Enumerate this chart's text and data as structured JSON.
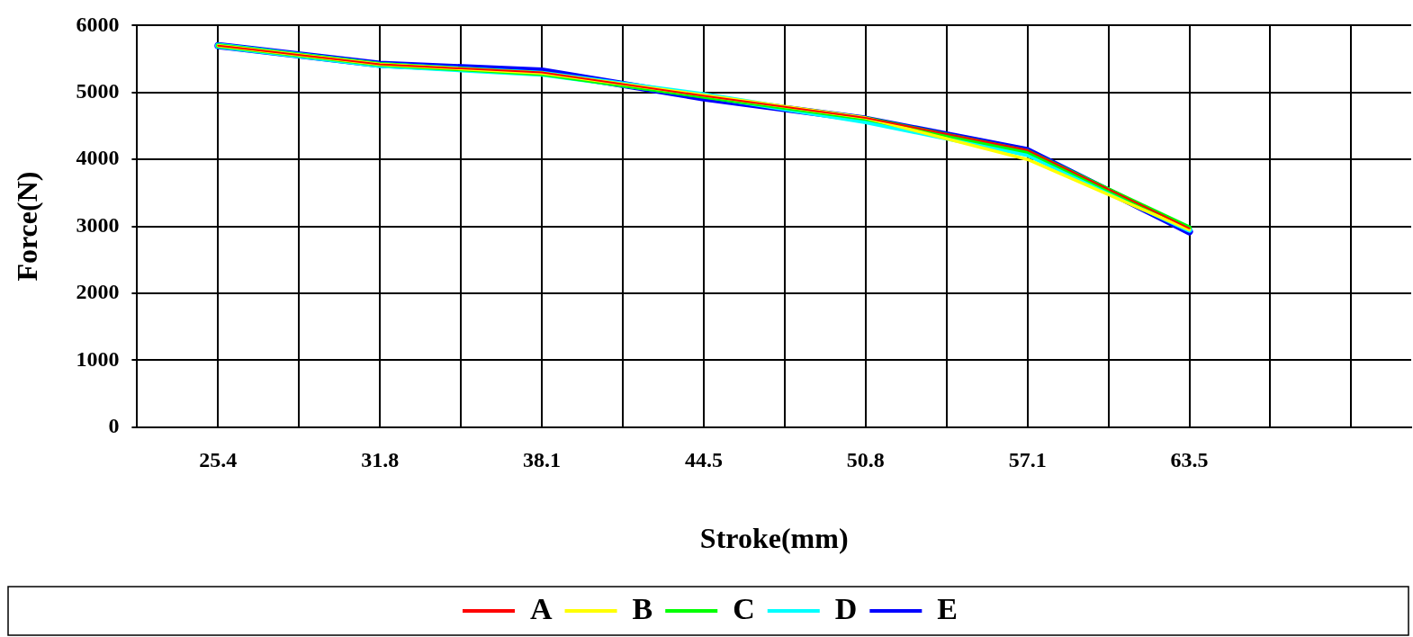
{
  "chart_data": {
    "type": "line",
    "xlabel": "Stroke(mm)",
    "ylabel": "Force(N)",
    "x": [
      25.4,
      31.75,
      38.1,
      44.45,
      50.8,
      57.15,
      63.5
    ],
    "series": [
      {
        "name": "A",
        "color": "#ff0000",
        "values": [
          5700,
          5420,
          5300,
          4950,
          4620,
          4140,
          2970
        ]
      },
      {
        "name": "B",
        "color": "#ffff00",
        "values": [
          5700,
          5420,
          5290,
          4960,
          4620,
          4000,
          2950
        ]
      },
      {
        "name": "C",
        "color": "#00ff00",
        "values": [
          5700,
          5420,
          5280,
          4940,
          4610,
          4120,
          2980
        ]
      },
      {
        "name": "D",
        "color": "#00ffff",
        "values": [
          5700,
          5410,
          5280,
          4960,
          4570,
          4080,
          2950
        ]
      },
      {
        "name": "E",
        "color": "#0000ff",
        "values": [
          5700,
          5420,
          5320,
          4920,
          4600,
          4130,
          2920
        ]
      }
    ],
    "xlim": [
      22.225,
      72.2
    ],
    "xticks": [
      {
        "value": 22.225,
        "label": null
      },
      {
        "value": 25.4,
        "label": "25.4"
      },
      {
        "value": 28.575,
        "label": null
      },
      {
        "value": 31.75,
        "label": "31.8"
      },
      {
        "value": 34.925,
        "label": null
      },
      {
        "value": 38.1,
        "label": "38.1"
      },
      {
        "value": 41.275,
        "label": null
      },
      {
        "value": 44.45,
        "label": "44.5"
      },
      {
        "value": 47.625,
        "label": null
      },
      {
        "value": 50.8,
        "label": "50.8"
      },
      {
        "value": 53.975,
        "label": null
      },
      {
        "value": 57.15,
        "label": "57.1"
      },
      {
        "value": 60.325,
        "label": null
      },
      {
        "value": 63.5,
        "label": "63.5"
      },
      {
        "value": 66.675,
        "label": null
      },
      {
        "value": 69.85,
        "label": null
      }
    ],
    "ylim": [
      0,
      6000
    ],
    "yticks": [
      0,
      1000,
      2000,
      3000,
      4000,
      5000,
      6000
    ],
    "grid": true,
    "legend": "bottom",
    "marker": "none",
    "line_style": "solid"
  }
}
